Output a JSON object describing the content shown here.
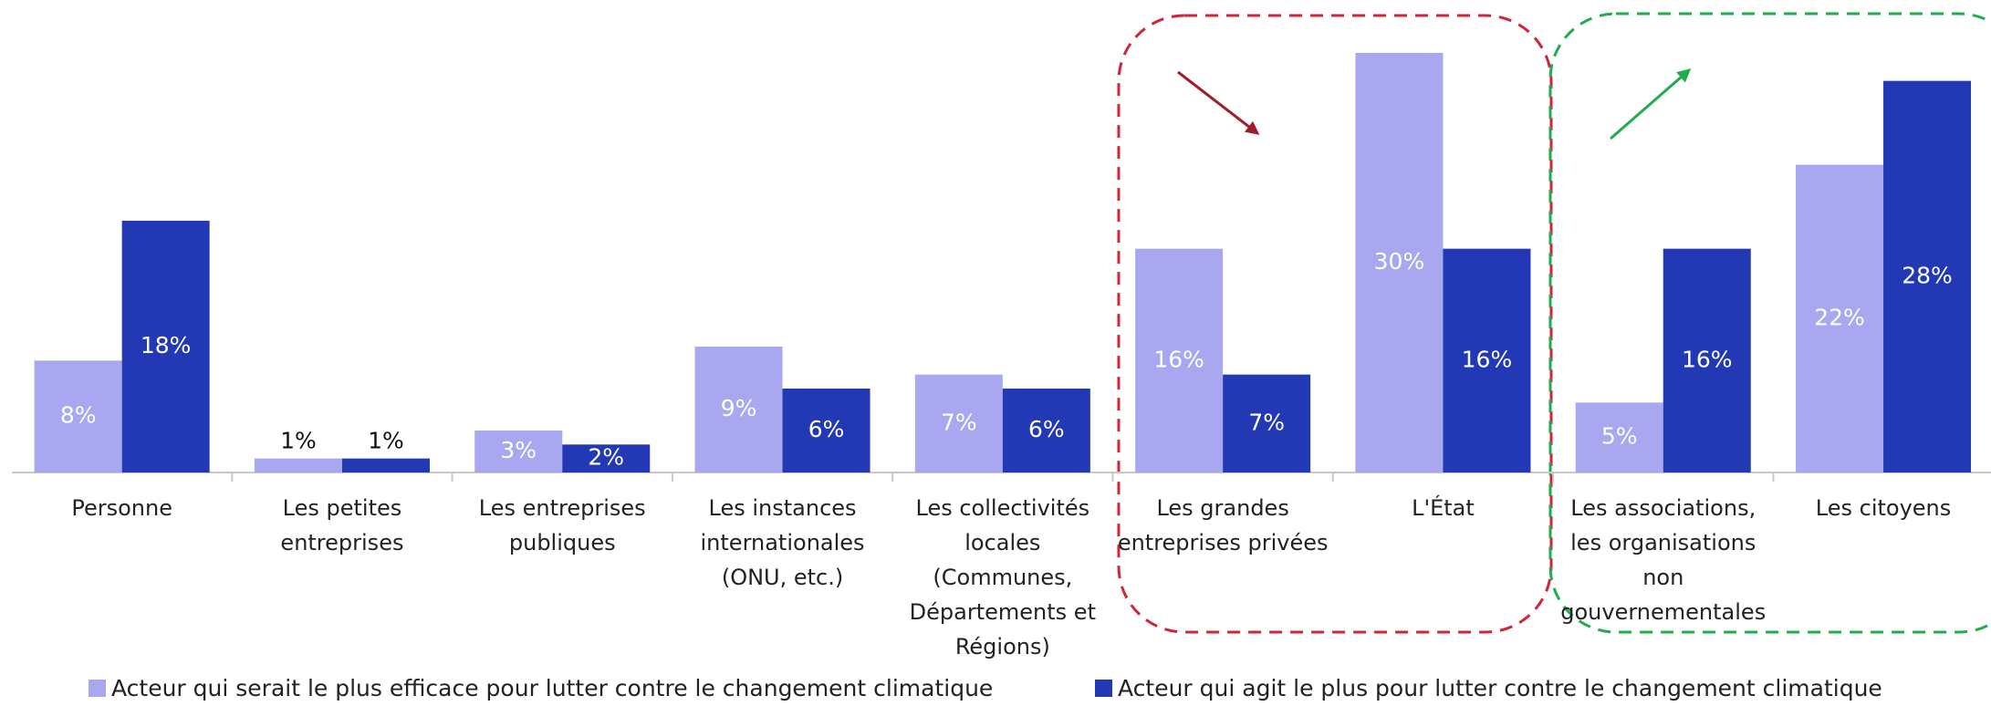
{
  "chart_data": {
    "type": "bar",
    "categories": [
      "Personne",
      "Les petites entreprises",
      "Les entreprises publiques",
      "Les instances internationales (ONU, etc.)",
      "Les collectivités locales (Communes, Départements et Régions)",
      "Les grandes entreprises privées",
      "L'État",
      "Les associations, les organisations non gouvernementales",
      "Les citoyens"
    ],
    "series": [
      {
        "name": "Acteur qui serait le plus efficace pour lutter contre le changement climatique",
        "color": "#a9a7ef",
        "values": [
          8,
          1,
          3,
          9,
          7,
          16,
          30,
          5,
          22
        ],
        "value_labels": [
          "8%",
          "1%",
          "3%",
          "9%",
          "7%",
          "16%",
          "30%",
          "5%",
          "22%"
        ]
      },
      {
        "name": "Acteur qui agit le plus pour lutter contre le changement climatique",
        "color": "#2338b5",
        "values": [
          18,
          1,
          2,
          6,
          6,
          7,
          16,
          16,
          28
        ],
        "value_labels": [
          "18%",
          "1%",
          "2%",
          "6%",
          "6%",
          "7%",
          "16%",
          "16%",
          "28%"
        ]
      }
    ],
    "ylim": [
      0,
      30
    ]
  }
}
